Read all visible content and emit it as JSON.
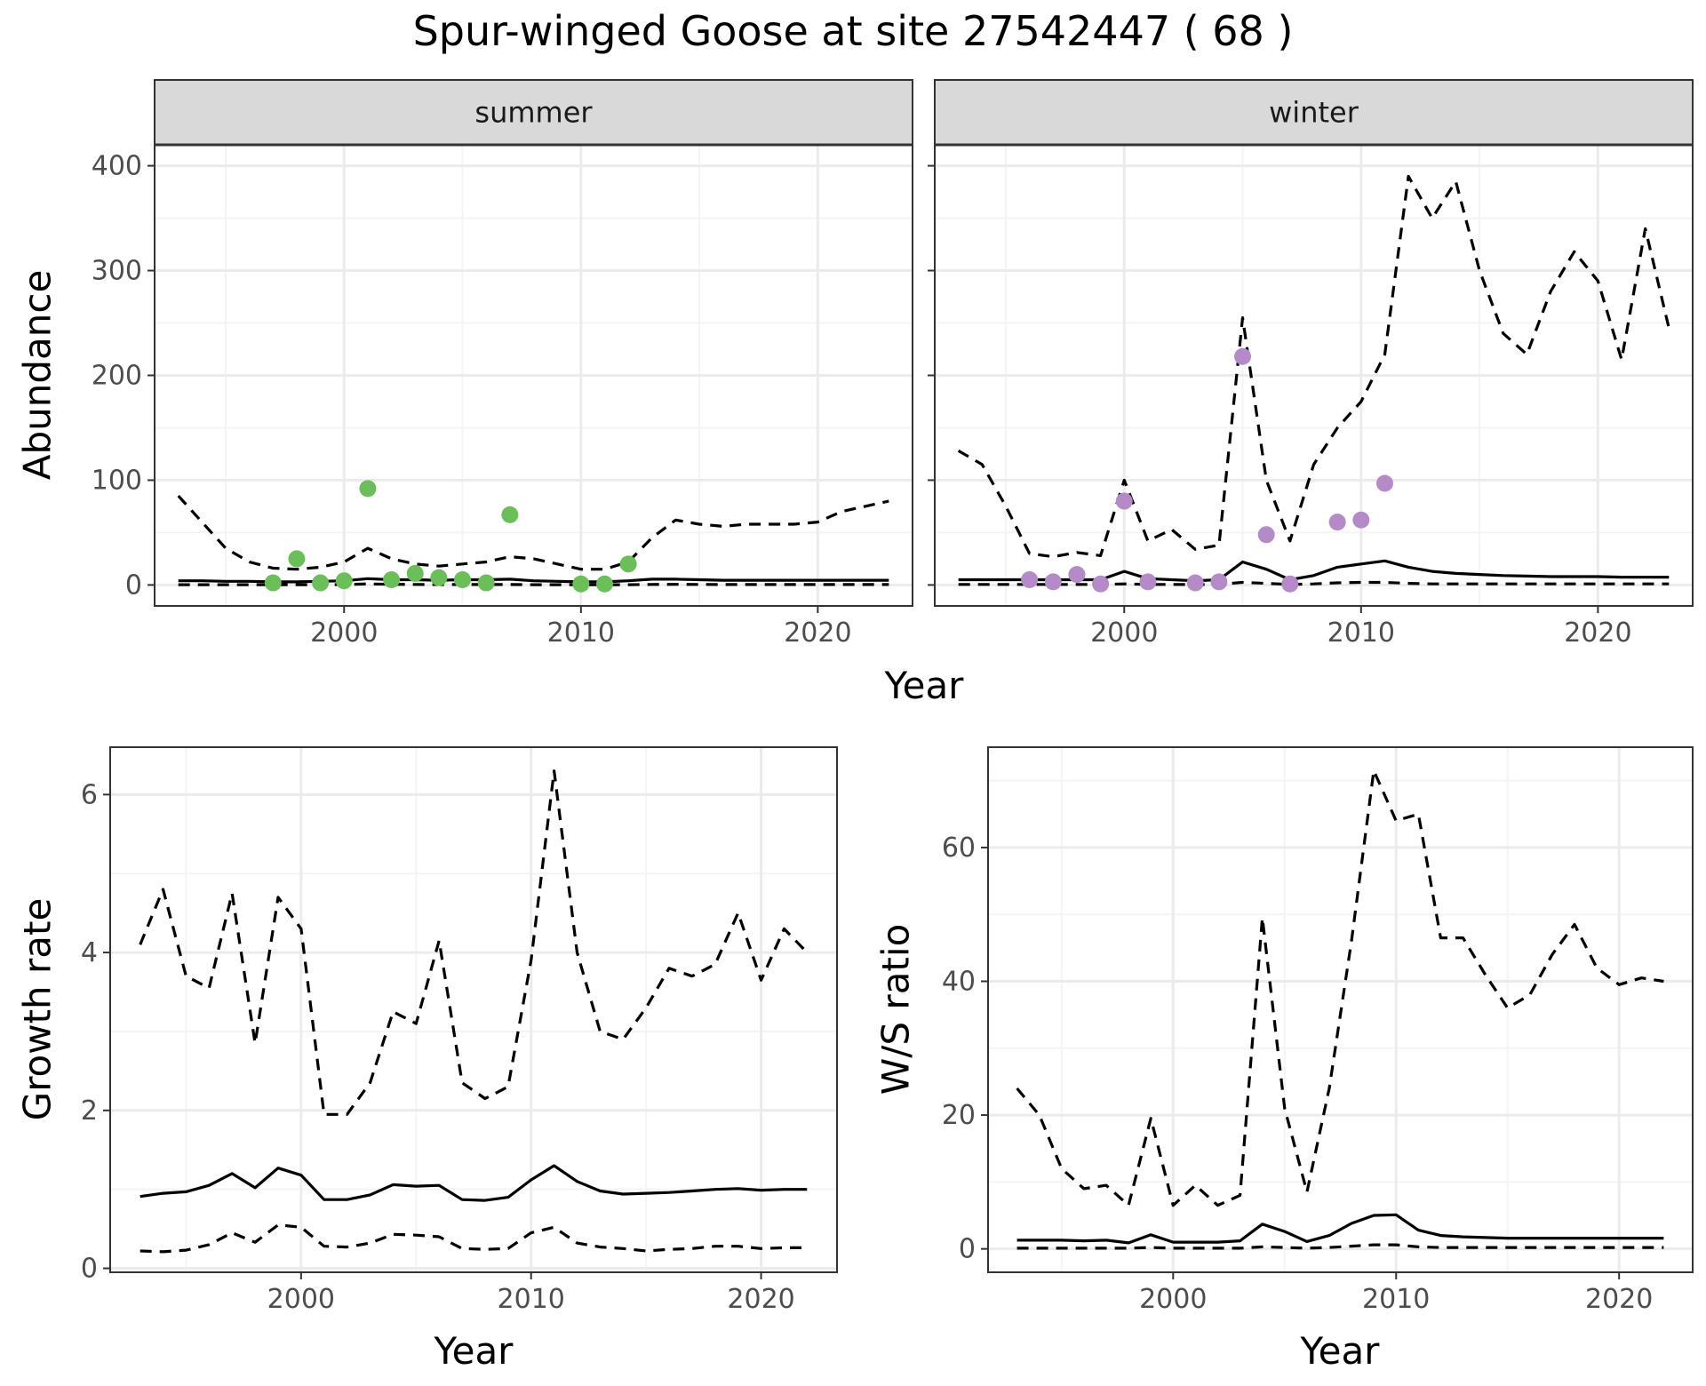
{
  "title": "Spur-winged Goose at site 27542447 ( 68 )",
  "colors": {
    "summer_points": "#6abf59",
    "winter_points": "#b58ac8",
    "line": "#000000",
    "grid_major": "#ebebeb",
    "grid_minor": "#f4f4f4",
    "strip_bg": "#d9d9d9"
  },
  "chart_data": [
    {
      "type": "line",
      "panel": "summer",
      "strip_label": "summer",
      "xlabel": "Year",
      "ylabel": "Abundance",
      "xlim": [
        1992,
        2024
      ],
      "ylim": [
        -20,
        420
      ],
      "xticks": [
        2000,
        2010,
        2020
      ],
      "yticks": [
        0,
        100,
        200,
        300,
        400
      ],
      "x": [
        1993,
        1994,
        1995,
        1996,
        1997,
        1998,
        1999,
        2000,
        2001,
        2002,
        2003,
        2004,
        2005,
        2006,
        2007,
        2008,
        2009,
        2010,
        2011,
        2012,
        2013,
        2014,
        2015,
        2016,
        2017,
        2018,
        2019,
        2020,
        2021,
        2022,
        2023
      ],
      "series": [
        {
          "name": "",
          "style": "solid",
          "values": [
            4,
            4,
            3.5,
            3.5,
            3,
            3,
            3.5,
            4,
            6,
            5,
            5,
            4.5,
            5,
            5,
            5.5,
            4,
            3.5,
            3,
            3,
            4,
            5.5,
            5.5,
            5,
            4.5,
            4.5,
            4.5,
            4.5,
            4.5,
            4.5,
            4.5,
            4.5
          ]
        },
        {
          "name": "",
          "style": "dashed",
          "values": [
            85,
            60,
            35,
            22,
            16,
            15,
            17,
            22,
            35,
            25,
            20,
            18,
            20,
            22,
            27,
            25,
            20,
            15,
            15,
            22,
            45,
            62,
            58,
            56,
            58,
            58,
            58,
            60,
            70,
            75,
            80
          ]
        },
        {
          "name": "",
          "style": "dashed",
          "values": [
            0.3,
            0.3,
            0.3,
            0.3,
            0.3,
            0.3,
            0.3,
            0.4,
            1,
            0.6,
            0.5,
            0.4,
            0.4,
            0.4,
            0.4,
            0.3,
            0.3,
            0.2,
            0.2,
            0.3,
            0.5,
            0.6,
            0.5,
            0.4,
            0.4,
            0.4,
            0.4,
            0.4,
            0.4,
            0.4,
            0.4
          ]
        }
      ],
      "points": {
        "x": [
          1997,
          1998,
          1999,
          2000,
          2001,
          2002,
          2003,
          2004,
          2005,
          2006,
          2007,
          2010,
          2011,
          2012
        ],
        "y": [
          2,
          25,
          2,
          4,
          92,
          5,
          11,
          7,
          5,
          2,
          67,
          1,
          1,
          20
        ]
      }
    },
    {
      "type": "line",
      "panel": "winter",
      "strip_label": "winter",
      "xlabel": "Year",
      "ylabel": "",
      "xlim": [
        1992,
        2024
      ],
      "ylim": [
        -20,
        420
      ],
      "xticks": [
        2000,
        2010,
        2020
      ],
      "yticks": [
        0,
        100,
        200,
        300,
        400
      ],
      "x": [
        1993,
        1994,
        1995,
        1996,
        1997,
        1998,
        1999,
        2000,
        2001,
        2002,
        2003,
        2004,
        2005,
        2006,
        2007,
        2008,
        2009,
        2010,
        2011,
        2012,
        2013,
        2014,
        2015,
        2016,
        2017,
        2018,
        2019,
        2020,
        2021,
        2022,
        2023
      ],
      "series": [
        {
          "name": "",
          "style": "solid",
          "values": [
            5,
            5,
            5,
            5,
            5,
            5,
            5,
            13,
            6,
            5,
            4,
            5,
            22,
            15,
            5,
            9,
            17,
            20,
            23,
            17,
            13,
            11,
            10,
            9,
            8.5,
            8,
            8,
            8,
            7.5,
            7.5,
            7.5
          ]
        },
        {
          "name": "",
          "style": "dashed",
          "values": [
            128,
            115,
            75,
            30,
            27,
            31,
            28,
            100,
            42,
            53,
            34,
            38,
            255,
            100,
            42,
            115,
            150,
            175,
            220,
            390,
            350,
            385,
            300,
            240,
            220,
            280,
            318,
            290,
            215,
            340,
            245
          ]
        },
        {
          "name": "",
          "style": "dashed",
          "values": [
            0.5,
            0.5,
            0.5,
            0.5,
            0.5,
            0.5,
            0.5,
            1,
            0.5,
            0.5,
            0.4,
            0.5,
            2.5,
            1.5,
            0.5,
            1,
            2,
            2.5,
            2.5,
            1.5,
            1,
            1,
            1,
            1,
            1,
            1,
            1,
            1,
            1,
            1,
            1
          ]
        }
      ],
      "points": {
        "x": [
          1996,
          1997,
          1998,
          1999,
          2000,
          2001,
          2003,
          2004,
          2005,
          2006,
          2007,
          2009,
          2010,
          2011
        ],
        "y": [
          5,
          3,
          10,
          1,
          80,
          3,
          2,
          3,
          218,
          48,
          1,
          60,
          62,
          97
        ]
      }
    },
    {
      "type": "line",
      "panel": "growth",
      "strip_label": "",
      "xlabel": "Year",
      "ylabel": "Growth rate",
      "xlim": [
        1991.7,
        2023.3
      ],
      "ylim": [
        -0.05,
        6.6
      ],
      "xticks": [
        2000,
        2010,
        2020
      ],
      "yticks": [
        0,
        2,
        4,
        6
      ],
      "x": [
        1993,
        1994,
        1995,
        1996,
        1997,
        1998,
        1999,
        2000,
        2001,
        2002,
        2003,
        2004,
        2005,
        2006,
        2007,
        2008,
        2009,
        2010,
        2011,
        2012,
        2013,
        2014,
        2015,
        2016,
        2017,
        2018,
        2019,
        2020,
        2021,
        2022
      ],
      "series": [
        {
          "name": "",
          "style": "solid",
          "values": [
            0.91,
            0.95,
            0.97,
            1.05,
            1.2,
            1.02,
            1.27,
            1.18,
            0.87,
            0.87,
            0.93,
            1.06,
            1.04,
            1.05,
            0.87,
            0.86,
            0.9,
            1.12,
            1.3,
            1.1,
            0.98,
            0.94,
            0.95,
            0.96,
            0.98,
            1.0,
            1.01,
            0.99,
            1.0,
            1.0
          ]
        },
        {
          "name": "",
          "style": "dashed",
          "values": [
            4.1,
            4.8,
            3.7,
            3.55,
            4.75,
            2.85,
            4.7,
            4.3,
            1.95,
            1.95,
            2.35,
            3.25,
            3.1,
            4.15,
            2.35,
            2.15,
            2.3,
            3.9,
            6.3,
            4.0,
            3.0,
            2.9,
            3.3,
            3.8,
            3.7,
            3.85,
            4.5,
            3.65,
            4.3,
            4.0
          ]
        },
        {
          "name": "",
          "style": "dashed",
          "values": [
            0.22,
            0.21,
            0.23,
            0.3,
            0.45,
            0.33,
            0.55,
            0.52,
            0.28,
            0.27,
            0.32,
            0.43,
            0.42,
            0.4,
            0.25,
            0.24,
            0.25,
            0.45,
            0.52,
            0.32,
            0.27,
            0.25,
            0.22,
            0.24,
            0.25,
            0.28,
            0.28,
            0.25,
            0.26,
            0.26
          ]
        }
      ]
    },
    {
      "type": "line",
      "panel": "ws-ratio",
      "strip_label": "",
      "xlabel": "Year",
      "ylabel": "W/S ratio",
      "xlim": [
        1991.7,
        2023.3
      ],
      "ylim": [
        -3.5,
        75
      ],
      "xticks": [
        2000,
        2010,
        2020
      ],
      "yticks": [
        0,
        20,
        40,
        60
      ],
      "x": [
        1993,
        1994,
        1995,
        1996,
        1997,
        1998,
        1999,
        2000,
        2001,
        2002,
        2003,
        2004,
        2005,
        2006,
        2007,
        2008,
        2009,
        2010,
        2011,
        2012,
        2013,
        2014,
        2015,
        2016,
        2017,
        2018,
        2019,
        2020,
        2021,
        2022
      ],
      "series": [
        {
          "name": "",
          "style": "solid",
          "values": [
            1.3,
            1.3,
            1.3,
            1.2,
            1.3,
            0.9,
            2.1,
            1.0,
            1.0,
            1.0,
            1.2,
            3.7,
            2.6,
            1.1,
            2.0,
            3.8,
            5.0,
            5.1,
            2.8,
            2.0,
            1.8,
            1.7,
            1.6,
            1.6,
            1.6,
            1.6,
            1.6,
            1.6,
            1.6,
            1.6
          ]
        },
        {
          "name": "",
          "style": "dashed",
          "values": [
            24,
            20,
            12,
            9,
            9.5,
            6.5,
            19.5,
            6.5,
            9.5,
            6.5,
            8,
            49.5,
            21,
            8.5,
            24,
            46,
            71.5,
            64,
            65,
            46.5,
            46.5,
            41,
            36,
            38,
            44,
            48.5,
            42,
            39.5,
            40.5,
            40
          ]
        },
        {
          "name": "",
          "style": "dashed",
          "values": [
            0.1,
            0.1,
            0.1,
            0.1,
            0.1,
            0.1,
            0.2,
            0.1,
            0.1,
            0.1,
            0.1,
            0.3,
            0.2,
            0.1,
            0.2,
            0.4,
            0.6,
            0.6,
            0.3,
            0.2,
            0.2,
            0.2,
            0.2,
            0.2,
            0.2,
            0.2,
            0.2,
            0.2,
            0.2,
            0.2
          ]
        }
      ]
    }
  ]
}
